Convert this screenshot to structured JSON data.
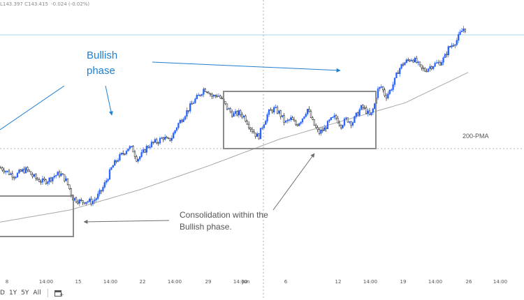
{
  "header": {
    "ohlc_prefix": "L143.397  C143.415",
    "change": "-0.024 (-0.02%)"
  },
  "toolbar": {
    "ranges": [
      "D",
      "1Y",
      "5Y",
      "All"
    ],
    "calendar_icon": "calendar-add-icon"
  },
  "annotations": {
    "bullish_line1": "Bullish",
    "bullish_line2": "phase",
    "consolidation_line1": "Consolidation within the",
    "consolidation_line2": "Bullish phase.",
    "ma_label": "200-PMA"
  },
  "colors": {
    "up_candle": "#2962ff",
    "down_candle": "#1a1a1a",
    "arrow": "#1f7fd0",
    "annotation_blue": "#1f7fd0",
    "box": "#8c8c8c",
    "ma_line": "#a8a8a8",
    "price_line": "#a6d7e9"
  },
  "chart_data": {
    "type": "candlestick",
    "title": "",
    "xlabel": "",
    "ylabel": "",
    "x_ticks": [
      "8",
      "14:00",
      "15",
      "14:00",
      "22",
      "14:00",
      "29",
      "14:00",
      "Jun",
      "6",
      "12",
      "14:00",
      "19",
      "14:00",
      "26",
      "14:00"
    ],
    "last_close": 143.415,
    "price_path": [
      [
        0,
        0.31
      ],
      [
        6,
        0.3
      ],
      [
        14,
        0.28
      ],
      [
        22,
        0.27
      ],
      [
        30,
        0.29
      ],
      [
        38,
        0.3
      ],
      [
        46,
        0.27
      ],
      [
        54,
        0.25
      ],
      [
        62,
        0.24
      ],
      [
        70,
        0.25
      ],
      [
        78,
        0.27
      ],
      [
        86,
        0.28
      ],
      [
        94,
        0.25
      ],
      [
        100,
        0.2
      ],
      [
        104,
        0.16
      ],
      [
        110,
        0.15
      ],
      [
        116,
        0.14
      ],
      [
        124,
        0.145
      ],
      [
        132,
        0.14
      ],
      [
        138,
        0.16
      ],
      [
        146,
        0.2
      ],
      [
        154,
        0.26
      ],
      [
        160,
        0.31
      ],
      [
        168,
        0.35
      ],
      [
        176,
        0.38
      ],
      [
        184,
        0.41
      ],
      [
        190,
        0.4
      ],
      [
        196,
        0.35
      ],
      [
        202,
        0.37
      ],
      [
        210,
        0.41
      ],
      [
        218,
        0.43
      ],
      [
        226,
        0.44
      ],
      [
        234,
        0.46
      ],
      [
        240,
        0.44
      ],
      [
        246,
        0.46
      ],
      [
        254,
        0.52
      ],
      [
        262,
        0.56
      ],
      [
        270,
        0.6
      ],
      [
        278,
        0.64
      ],
      [
        286,
        0.67
      ],
      [
        292,
        0.7
      ],
      [
        298,
        0.69
      ],
      [
        304,
        0.66
      ],
      [
        312,
        0.67
      ],
      [
        318,
        0.64
      ],
      [
        326,
        0.6
      ],
      [
        334,
        0.57
      ],
      [
        342,
        0.58
      ],
      [
        350,
        0.56
      ],
      [
        358,
        0.51
      ],
      [
        364,
        0.48
      ],
      [
        370,
        0.46
      ],
      [
        376,
        0.52
      ],
      [
        384,
        0.58
      ],
      [
        392,
        0.6
      ],
      [
        400,
        0.58
      ],
      [
        408,
        0.53
      ],
      [
        416,
        0.55
      ],
      [
        424,
        0.52
      ],
      [
        432,
        0.55
      ],
      [
        440,
        0.6
      ],
      [
        448,
        0.53
      ],
      [
        456,
        0.48
      ],
      [
        464,
        0.5
      ],
      [
        472,
        0.54
      ],
      [
        480,
        0.56
      ],
      [
        488,
        0.52
      ],
      [
        496,
        0.55
      ],
      [
        504,
        0.53
      ],
      [
        512,
        0.58
      ],
      [
        518,
        0.61
      ],
      [
        524,
        0.59
      ],
      [
        530,
        0.56
      ],
      [
        536,
        0.62
      ],
      [
        540,
        0.69
      ],
      [
        546,
        0.71
      ],
      [
        552,
        0.66
      ],
      [
        558,
        0.69
      ],
      [
        564,
        0.73
      ],
      [
        570,
        0.79
      ],
      [
        576,
        0.82
      ],
      [
        584,
        0.84
      ],
      [
        590,
        0.85
      ],
      [
        596,
        0.83
      ],
      [
        602,
        0.8
      ],
      [
        608,
        0.79
      ],
      [
        616,
        0.81
      ],
      [
        622,
        0.82
      ],
      [
        630,
        0.83
      ],
      [
        636,
        0.85
      ],
      [
        642,
        0.9
      ],
      [
        648,
        0.92
      ],
      [
        654,
        0.94
      ],
      [
        660,
        0.98
      ],
      [
        664,
        1.0
      ],
      [
        668,
        0.99
      ]
    ],
    "ma_200": [
      [
        0,
        0.04
      ],
      [
        100,
        0.1
      ],
      [
        200,
        0.2
      ],
      [
        300,
        0.32
      ],
      [
        400,
        0.45
      ],
      [
        500,
        0.55
      ],
      [
        580,
        0.63
      ],
      [
        640,
        0.73
      ],
      [
        670,
        0.78
      ]
    ],
    "grid": false,
    "legend": "none"
  }
}
